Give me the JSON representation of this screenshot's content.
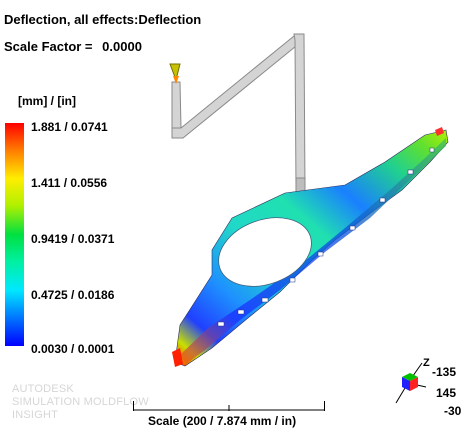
{
  "header": {
    "title": "Deflection, all effects:Deflection",
    "scale_factor_label": "Scale Factor =",
    "scale_factor_value": "0.0000"
  },
  "legend": {
    "units": "[mm] / [in]",
    "ticks": [
      "1.881 /  0.0741",
      "1.411 /  0.0556",
      "0.9419 /  0.0371",
      "0.4725 /  0.0186",
      "0.0030 /  0.0001"
    ]
  },
  "scale_bar": {
    "label": "Scale (200 / 7.874 mm / in)"
  },
  "orientation": {
    "angles": [
      "-135",
      "145",
      "-30"
    ],
    "axis_z": "Z"
  },
  "branding": {
    "line1": "AUTODESK",
    "line2": "SIMULATION MOLDFLOW",
    "line3": "INSIGHT"
  },
  "colors": {
    "max": "#ff0000",
    "mid": "#00e040",
    "min": "#0000ff",
    "runner": "#d2d2d2"
  }
}
